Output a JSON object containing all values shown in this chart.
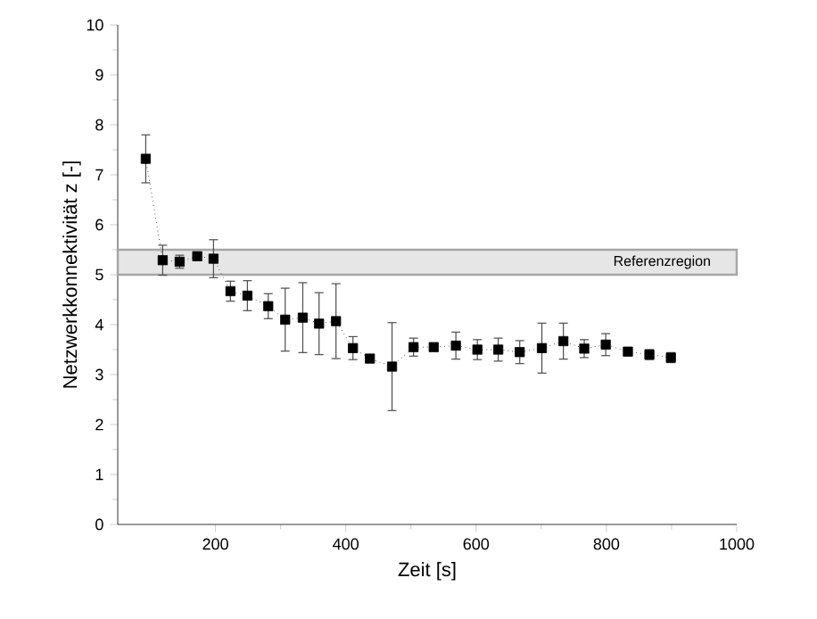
{
  "chart_data": {
    "type": "line",
    "xlabel": "Zeit [s]",
    "ylabel": "Netzwerkkonnektivität z [-]",
    "x": [
      93,
      119,
      145,
      172,
      197,
      223,
      249,
      281,
      307,
      334,
      359,
      385,
      411,
      437,
      471,
      504,
      535,
      569,
      602,
      634,
      667,
      701,
      734,
      766,
      799,
      833,
      866,
      899
    ],
    "series": [
      {
        "color": "#000000",
        "values": [
          7.32,
          5.29,
          5.26,
          5.37,
          5.32,
          4.67,
          4.58,
          4.37,
          4.1,
          4.14,
          4.02,
          4.07,
          3.53,
          3.32,
          3.16,
          3.55,
          3.55,
          3.58,
          3.5,
          3.5,
          3.45,
          3.53,
          3.67,
          3.52,
          3.6,
          3.46,
          3.4,
          3.34
        ],
        "errors": [
          0.48,
          0.3,
          0.13,
          0.07,
          0.38,
          0.2,
          0.3,
          0.25,
          0.63,
          0.7,
          0.62,
          0.75,
          0.23,
          0.07,
          0.88,
          0.18,
          null,
          0.27,
          0.2,
          0.23,
          0.23,
          0.5,
          0.36,
          0.18,
          0.22,
          0.05,
          0.1,
          0.1
        ]
      }
    ],
    "marker": "square",
    "line_style": "dotted",
    "xlim": [
      50,
      1000
    ],
    "xticks": [
      200,
      400,
      600,
      800,
      1000
    ],
    "ylim": [
      0,
      10
    ],
    "yticks": [
      0,
      1,
      2,
      3,
      4,
      5,
      6,
      7,
      8,
      9,
      10
    ],
    "bands": [
      {
        "axis": "y",
        "from": 5,
        "to": 5.5,
        "label": "Referenzregion",
        "color": "#e6e6e6"
      }
    ],
    "grid": false
  }
}
